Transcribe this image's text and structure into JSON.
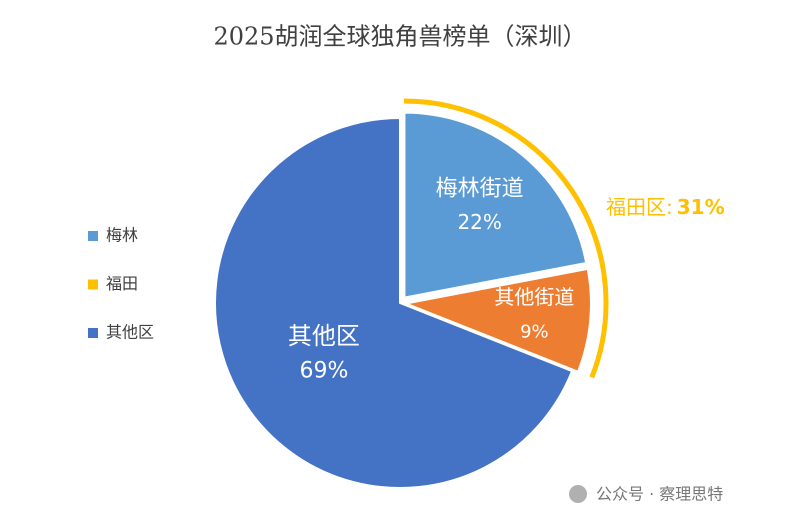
{
  "chart_data": {
    "type": "pie",
    "title": "2025胡润全球独角兽榜单（深圳）",
    "categories": [
      "梅林街道",
      "其他街道",
      "其他区"
    ],
    "values": [
      22,
      9,
      69
    ],
    "value_labels": [
      "22%",
      "9%",
      "69%"
    ],
    "colors": [
      "#5b9bd5",
      "#ed7d31",
      "#4472c4"
    ],
    "legend": [
      {
        "name": "梅林",
        "color": "#5b9bd5"
      },
      {
        "name": "福田",
        "color": "#ffc000"
      },
      {
        "name": "其他区",
        "color": "#4472c4"
      }
    ],
    "annotation": {
      "label": "福田区:",
      "value": 31,
      "value_label": "31%",
      "color": "#ffc000"
    },
    "watermark": "公众号 · 察理思特"
  }
}
